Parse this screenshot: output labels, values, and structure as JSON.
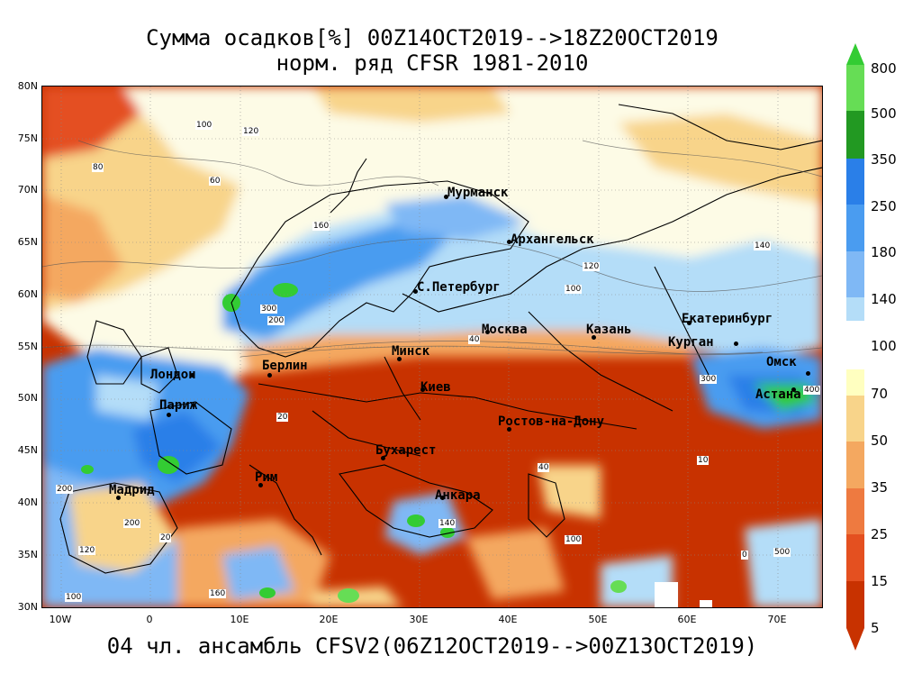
{
  "title": {
    "line1": "Сумма осадков[%] 00Z14OCT2019-->18Z20OCT2019",
    "line2": "норм. ряд CFSR 1981-2010"
  },
  "footer": "04 чл. ансамбль CFSV2(06Z12OCT2019-->00Z13OCT2019)",
  "axes": {
    "y_labels": [
      "80N",
      "75N",
      "70N",
      "65N",
      "60N",
      "55N",
      "50N",
      "45N",
      "40N",
      "35N",
      "30N"
    ],
    "x_labels": [
      "10W",
      "0",
      "10E",
      "20E",
      "30E",
      "40E",
      "50E",
      "60E",
      "70E"
    ]
  },
  "colorbar": {
    "labels": [
      "800",
      "500",
      "350",
      "250",
      "180",
      "140",
      "100",
      "70",
      "50",
      "35",
      "25",
      "15",
      "5"
    ],
    "colors": [
      "#33cc33",
      "#66dd55",
      "#229922",
      "#2a7fe8",
      "#4a9cf0",
      "#7fb8f5",
      "#b4ddf8",
      "#ffffc0",
      "#f8d48a",
      "#f4a860",
      "#ee7a40",
      "#e45020",
      "#c83200"
    ]
  },
  "cities": [
    {
      "name": "Мурманск"
    },
    {
      "name": "Архангельск"
    },
    {
      "name": "С.Петербург"
    },
    {
      "name": "Москва"
    },
    {
      "name": "Казань"
    },
    {
      "name": "Екатеринбург"
    },
    {
      "name": "Курган"
    },
    {
      "name": "Омск"
    },
    {
      "name": "Астана"
    },
    {
      "name": "Минск"
    },
    {
      "name": "Берлин"
    },
    {
      "name": "Лондон"
    },
    {
      "name": "Париж"
    },
    {
      "name": "Киев"
    },
    {
      "name": "Ростов-на-Дону"
    },
    {
      "name": "Бухарест"
    },
    {
      "name": "Рим"
    },
    {
      "name": "Мадрид"
    },
    {
      "name": "Анкара"
    }
  ],
  "contour_labels": [
    "100",
    "120",
    "60",
    "80",
    "160",
    "200",
    "300",
    "140",
    "40",
    "20",
    "10",
    "0",
    "400",
    "500"
  ]
}
